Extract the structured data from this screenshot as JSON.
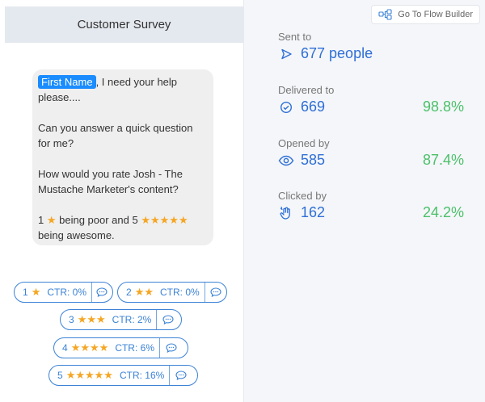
{
  "left": {
    "title": "Customer Survey",
    "message": {
      "name_tag": "First Name",
      "line1_rest": ", I need your help please....",
      "line2": "Can you answer a quick question for me?",
      "line3": "How would you rate Josh - The Mustache Marketer's content?",
      "line4_prefix": "1",
      "line4_middle": " being poor and 5 ",
      "line4_suffix": "being awesome."
    },
    "buttons": [
      {
        "num": "1",
        "stars": 1,
        "ctr": "CTR: 0%"
      },
      {
        "num": "2",
        "stars": 2,
        "ctr": "CTR: 0%"
      },
      {
        "num": "3",
        "stars": 3,
        "ctr": "CTR: 2%"
      },
      {
        "num": "4",
        "stars": 4,
        "ctr": "CTR: 6%"
      },
      {
        "num": "5",
        "stars": 5,
        "ctr": "CTR: 16%"
      }
    ]
  },
  "right": {
    "flow_builder_label": "Go To Flow Builder",
    "stats": [
      {
        "label": "Sent to",
        "value": "677 people",
        "pct": "",
        "icon": "send-icon"
      },
      {
        "label": "Delivered to",
        "value": "669",
        "pct": "98.8%",
        "icon": "check-circle-icon"
      },
      {
        "label": "Opened by",
        "value": "585",
        "pct": "87.4%",
        "icon": "eye-icon"
      },
      {
        "label": "Clicked by",
        "value": "162",
        "pct": "24.2%",
        "icon": "hand-click-icon"
      }
    ]
  },
  "colors": {
    "accent": "#2f6fd6",
    "positive": "#4cc06a",
    "star": "#f5a623",
    "tag": "#1a8cff"
  }
}
